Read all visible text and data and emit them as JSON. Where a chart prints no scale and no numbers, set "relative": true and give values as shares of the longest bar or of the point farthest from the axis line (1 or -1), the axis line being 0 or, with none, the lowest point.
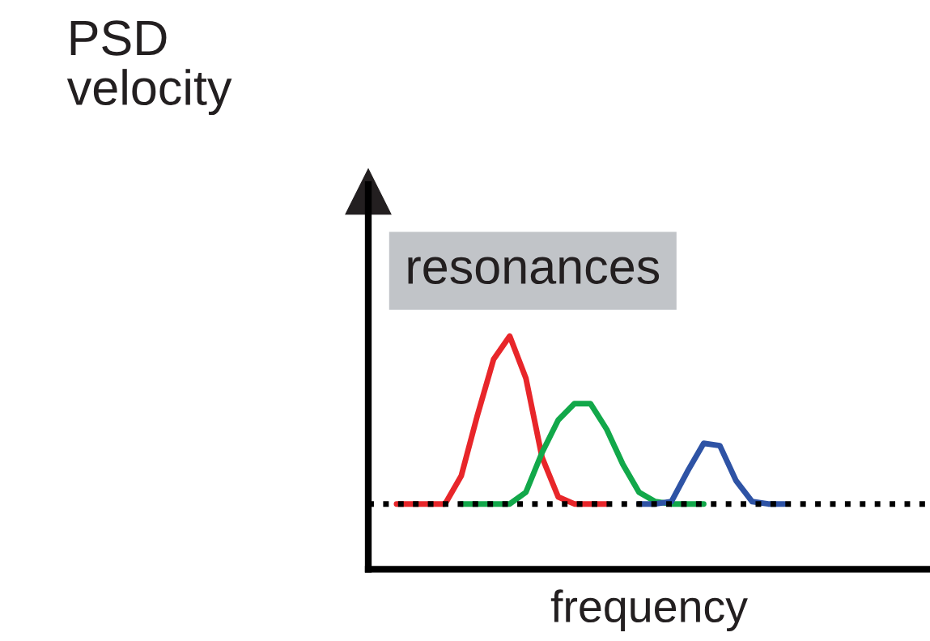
{
  "chart_data": {
    "type": "line",
    "relative": true,
    "xlabel": "frequency",
    "annotations": [
      "PSD\nvelocity",
      "resonances"
    ],
    "categories": [
      null,
      null,
      null,
      null,
      null,
      null,
      null,
      null,
      null,
      null,
      null,
      null,
      null,
      null,
      null,
      null,
      null,
      null,
      null,
      null,
      null,
      null,
      null,
      null,
      null,
      null,
      null,
      null,
      null,
      null,
      null,
      null,
      null
    ],
    "series": [
      {
        "color": "#e8262a",
        "values": [
          0.28,
          0.28,
          0.28,
          0.28,
          0.4,
          0.66,
          0.9,
          1,
          0.82,
          0.48,
          0.31,
          0.28,
          0.28,
          0.28,
          null,
          null,
          null,
          null,
          null,
          null,
          null,
          null,
          null,
          null,
          null,
          null,
          null,
          null,
          null,
          null,
          null,
          null,
          null
        ]
      },
      {
        "color": "#12a84a",
        "values": [
          null,
          null,
          null,
          null,
          0.28,
          0.28,
          0.28,
          0.28,
          0.33,
          0.5,
          0.64,
          0.71,
          0.71,
          0.6,
          0.45,
          0.33,
          0.29,
          0.28,
          0.28,
          0.28,
          null,
          null,
          null,
          null,
          null,
          null,
          null,
          null,
          null,
          null,
          null,
          null,
          null
        ]
      },
      {
        "color": "#2e53a5",
        "values": [
          null,
          null,
          null,
          null,
          null,
          null,
          null,
          null,
          null,
          null,
          null,
          null,
          null,
          null,
          null,
          0.28,
          0.28,
          0.29,
          0.42,
          0.54,
          0.53,
          0.38,
          0.29,
          0.28,
          0.28,
          null,
          null,
          null,
          null,
          null,
          null,
          null,
          null
        ]
      }
    ],
    "ref_lines": [
      {
        "axis": "y",
        "value": 0.28,
        "color": "#000000",
        "line_style": "dotted"
      }
    ],
    "line_style": "solid",
    "marker": "none",
    "grid": false,
    "legend": false,
    "tick_labels": false
  }
}
